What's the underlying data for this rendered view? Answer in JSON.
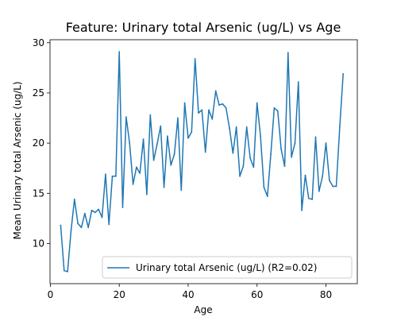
{
  "chart_data": {
    "type": "line",
    "title": "Feature: Urinary total Arsenic (ug/L) vs Age",
    "xlabel": "Age",
    "ylabel": "Mean Urinary total Arsenic (ug/L)",
    "xlim": [
      -0.1,
      89.1
    ],
    "ylim": [
      6.0,
      30.3
    ],
    "xticks": [
      0,
      20,
      40,
      60,
      80
    ],
    "yticks": [
      10,
      15,
      20,
      25,
      30
    ],
    "legend_position": "lower-right",
    "series": [
      {
        "name": "Urinary total Arsenic (ug/L) (R2=0.02)",
        "color": "#1f77b4",
        "x": [
          3,
          4,
          5,
          6,
          7,
          8,
          9,
          10,
          11,
          12,
          13,
          14,
          15,
          16,
          17,
          18,
          19,
          20,
          21,
          22,
          23,
          24,
          25,
          26,
          27,
          28,
          29,
          30,
          31,
          32,
          33,
          34,
          35,
          36,
          37,
          38,
          39,
          40,
          41,
          42,
          43,
          44,
          45,
          46,
          47,
          48,
          49,
          50,
          51,
          52,
          53,
          54,
          55,
          56,
          57,
          58,
          59,
          60,
          61,
          62,
          63,
          64,
          65,
          66,
          67,
          68,
          69,
          70,
          71,
          72,
          73,
          74,
          75,
          76,
          77,
          78,
          79,
          80,
          81,
          82,
          83,
          84,
          85
        ],
        "y": [
          11.8,
          7.3,
          7.2,
          11.3,
          14.4,
          12.0,
          11.6,
          13.0,
          11.6,
          13.3,
          13.1,
          13.4,
          12.6,
          16.9,
          11.9,
          16.7,
          16.7,
          29.1,
          13.6,
          22.6,
          20.0,
          15.9,
          17.6,
          17.0,
          20.4,
          14.9,
          22.8,
          18.3,
          19.9,
          21.7,
          15.6,
          20.7,
          17.8,
          18.9,
          22.5,
          15.3,
          24.0,
          20.5,
          21.1,
          28.4,
          23.0,
          23.3,
          19.1,
          23.3,
          22.4,
          25.2,
          23.8,
          23.9,
          23.5,
          21.5,
          19.0,
          21.6,
          16.7,
          17.7,
          21.6,
          18.5,
          17.6,
          24.0,
          20.7,
          15.6,
          14.7,
          18.9,
          23.5,
          23.2,
          19.4,
          17.7,
          29.0,
          18.6,
          20.0,
          26.1,
          13.3,
          16.8,
          14.5,
          14.4,
          20.6,
          15.2,
          16.7,
          20.0,
          16.3,
          15.7,
          15.7,
          21.6,
          26.9
        ]
      }
    ]
  }
}
